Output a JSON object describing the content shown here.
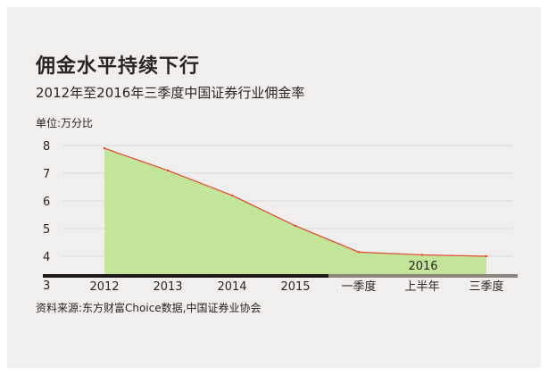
{
  "title": "佣金水平持续下行",
  "subtitle": "2012年至2016年三季度中国证券行业佣金率",
  "unit_label": "单位:万分比",
  "source": "资料来源:东方财富Choice数据,中国证券业协会",
  "colors": {
    "area_fill": "#c3e59a",
    "line": "#e0472f",
    "axis_dark": "#1e1a17",
    "axis_light": "#8c847d",
    "grid": "#dcdad6",
    "card_bg": "#f0efed"
  },
  "chart_data": {
    "type": "area",
    "categories": [
      "2012",
      "2013",
      "2014",
      "2015",
      "一季度",
      "上半年",
      "三季度"
    ],
    "values": [
      7.9,
      7.1,
      6.2,
      5.1,
      4.15,
      4.05,
      4.0
    ],
    "ylim": [
      3,
      8.2
    ],
    "yticks": [
      3,
      4,
      5,
      6,
      7,
      8
    ],
    "annotation": "2016",
    "grid": true,
    "legend": "none"
  }
}
